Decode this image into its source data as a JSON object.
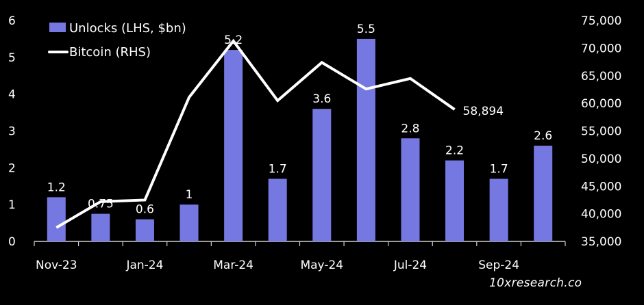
{
  "chart_data": {
    "type": "bar+line",
    "title": "",
    "colors": {
      "background": "#000000",
      "bar": "#7678e2",
      "line": "#ffffff",
      "axis": "#cfcfcf",
      "text": "#ffffff"
    },
    "months": [
      "Nov-23",
      "Dec-23",
      "Jan-24",
      "Feb-24",
      "Mar-24",
      "Apr-24",
      "May-24",
      "Jun-24",
      "Jul-24",
      "Aug-24",
      "Sep-24",
      "Oct-24"
    ],
    "x_tick_labels": [
      "Nov-23",
      "Jan-24",
      "Mar-24",
      "May-24",
      "Jul-24",
      "Sep-24"
    ],
    "left_axis": {
      "ticks": [
        "0",
        "1",
        "2",
        "3",
        "4",
        "5",
        "6"
      ],
      "ylim": [
        0,
        6
      ]
    },
    "right_axis": {
      "ticks": [
        "35,000",
        "40,000",
        "45,000",
        "50,000",
        "55,000",
        "60,000",
        "65,000",
        "70,000",
        "75,000"
      ],
      "ylim": [
        35000,
        75000
      ]
    },
    "legend": {
      "placement": "top-left",
      "items": [
        "Unlocks (LHS, $bn)",
        "Bitcoin (RHS)"
      ]
    },
    "series": [
      {
        "name": "Unlocks (LHS, $bn)",
        "kind": "bar",
        "axis": "left",
        "values": [
          1.2,
          0.75,
          0.6,
          1,
          5.2,
          1.7,
          3.6,
          5.5,
          2.8,
          2.2,
          1.7,
          2.6
        ],
        "labels": [
          "1.2",
          "0.75",
          "0.6",
          "1",
          "5.2",
          "1.7",
          "3.6",
          "5.5",
          "2.8",
          "2.2",
          "1.7",
          "2.6"
        ]
      },
      {
        "name": "Bitcoin (RHS)",
        "kind": "line",
        "axis": "right",
        "x": [
          "Nov-23",
          "Dec-23",
          "Jan-24",
          "Feb-24",
          "Mar-24",
          "Apr-24",
          "May-24",
          "Jun-24",
          "Jul-24",
          "Aug-24"
        ],
        "values": [
          37500,
          42200,
          42500,
          61100,
          71300,
          60500,
          67400,
          62600,
          64500,
          58894
        ],
        "end_label": "58,894"
      }
    ]
  },
  "watermark": "10xresearch.co"
}
